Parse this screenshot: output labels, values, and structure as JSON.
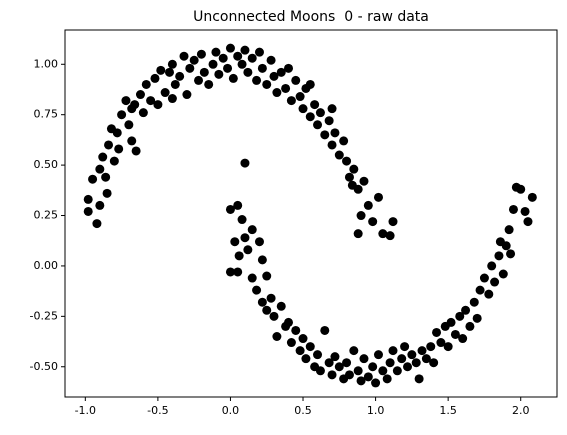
{
  "chart_data": {
    "type": "scatter",
    "title": "Unconnected Moons  0 - raw data",
    "xlim": [
      -1.14,
      2.25
    ],
    "ylim": [
      -0.65,
      1.17
    ],
    "xticks": [
      {
        "value": -1.0,
        "label": "-1.0"
      },
      -0.5,
      {
        "value": 0.0,
        "label": "0.0"
      },
      0.5,
      {
        "value": 1.0,
        "label": "1.0"
      },
      1.5,
      {
        "value": 2.0,
        "label": "2.0"
      }
    ],
    "yticks": [
      {
        "value": -0.5,
        "label": "-0.50"
      },
      -0.25,
      {
        "value": 0.0,
        "label": "0.00"
      },
      0.25,
      {
        "value": 0.5,
        "label": "0.50"
      },
      0.75,
      {
        "value": 1.0,
        "label": "1.00"
      }
    ],
    "series": [
      {
        "color": "#000000",
        "x": [
          -0.98,
          -0.98,
          -0.92,
          -0.95,
          -0.9,
          -0.88,
          -0.86,
          -0.9,
          -0.85,
          -0.84,
          -0.82,
          -0.8,
          -0.78,
          -0.75,
          -0.77,
          -0.72,
          -0.7,
          -0.68,
          -0.66,
          -0.65,
          -0.62,
          -0.6,
          -0.58,
          -0.55,
          -0.52,
          -0.5,
          -0.48,
          -0.45,
          -0.42,
          -0.4,
          -0.38,
          -0.35,
          -0.32,
          -0.3,
          -0.28,
          -0.25,
          -0.22,
          -0.2,
          -0.18,
          -0.15,
          -0.12,
          -0.1,
          -0.08,
          -0.05,
          -0.02,
          0.0,
          0.02,
          0.05,
          0.08,
          0.1,
          0.12,
          0.15,
          0.18,
          0.2,
          0.22,
          0.25,
          0.28,
          0.3,
          0.32,
          0.35,
          0.38,
          0.4,
          0.42,
          0.45,
          0.48,
          0.5,
          0.52,
          0.55,
          0.58,
          0.6,
          0.62,
          0.65,
          0.68,
          0.7,
          0.72,
          0.75,
          0.78,
          0.8,
          0.82,
          0.85,
          0.88,
          0.9,
          0.92,
          0.95,
          0.88,
          0.98,
          1.02,
          1.05,
          1.1,
          1.12,
          0.84,
          0.7,
          0.55,
          -0.68,
          -0.4,
          0.1,
          0.0,
          0.05,
          0.08,
          0.03,
          0.06,
          0.1,
          0.12,
          0.15,
          0.2,
          0.22,
          0.0,
          0.05,
          0.15,
          0.18,
          0.25,
          0.22,
          0.28,
          0.3,
          0.25,
          0.35,
          0.38,
          0.32,
          0.4,
          0.42,
          0.45,
          0.48,
          0.5,
          0.52,
          0.55,
          0.58,
          0.6,
          0.62,
          0.65,
          0.68,
          0.7,
          0.72,
          0.75,
          0.78,
          0.8,
          0.82,
          0.85,
          0.88,
          0.9,
          0.92,
          0.95,
          0.98,
          1.0,
          1.02,
          1.05,
          1.08,
          1.1,
          1.12,
          1.15,
          1.18,
          1.2,
          1.22,
          1.25,
          1.28,
          1.3,
          1.32,
          1.35,
          1.38,
          1.4,
          1.42,
          1.45,
          1.48,
          1.5,
          1.52,
          1.55,
          1.58,
          1.6,
          1.62,
          1.65,
          1.68,
          1.7,
          1.72,
          1.75,
          1.78,
          1.8,
          1.82,
          1.85,
          1.88,
          1.9,
          1.86,
          1.92,
          1.95,
          1.97,
          2.0,
          2.03,
          2.08,
          2.05,
          1.93
        ],
        "values": [
          0.33,
          0.27,
          0.21,
          0.43,
          0.48,
          0.54,
          0.44,
          0.3,
          0.36,
          0.6,
          0.68,
          0.52,
          0.66,
          0.75,
          0.58,
          0.82,
          0.7,
          0.62,
          0.8,
          0.57,
          0.85,
          0.76,
          0.9,
          0.82,
          0.93,
          0.8,
          0.97,
          0.86,
          0.96,
          1.0,
          0.9,
          0.94,
          1.04,
          0.85,
          0.98,
          1.02,
          0.92,
          1.05,
          0.96,
          0.9,
          1.0,
          1.06,
          0.95,
          1.03,
          0.98,
          1.08,
          0.93,
          1.04,
          1.0,
          1.07,
          0.96,
          1.03,
          0.92,
          1.06,
          0.98,
          0.9,
          1.02,
          0.94,
          0.86,
          0.96,
          0.88,
          0.98,
          0.82,
          0.92,
          0.84,
          0.78,
          0.88,
          0.74,
          0.8,
          0.7,
          0.76,
          0.65,
          0.72,
          0.6,
          0.66,
          0.55,
          0.62,
          0.52,
          0.44,
          0.48,
          0.38,
          0.25,
          0.42,
          0.3,
          0.16,
          0.22,
          0.34,
          0.16,
          0.15,
          0.22,
          0.4,
          0.78,
          0.9,
          0.78,
          0.83,
          0.51,
          0.28,
          0.3,
          0.23,
          0.12,
          0.05,
          0.14,
          0.08,
          0.18,
          0.12,
          0.03,
          -0.03,
          -0.03,
          -0.06,
          -0.12,
          -0.05,
          -0.18,
          -0.16,
          -0.25,
          -0.22,
          -0.2,
          -0.3,
          -0.35,
          -0.28,
          -0.38,
          -0.32,
          -0.42,
          -0.36,
          -0.46,
          -0.4,
          -0.5,
          -0.44,
          -0.52,
          -0.32,
          -0.48,
          -0.54,
          -0.45,
          -0.5,
          -0.56,
          -0.48,
          -0.54,
          -0.42,
          -0.52,
          -0.57,
          -0.46,
          -0.55,
          -0.5,
          -0.58,
          -0.44,
          -0.52,
          -0.56,
          -0.48,
          -0.42,
          -0.52,
          -0.46,
          -0.4,
          -0.5,
          -0.44,
          -0.48,
          -0.56,
          -0.42,
          -0.46,
          -0.4,
          -0.48,
          -0.33,
          -0.38,
          -0.3,
          -0.4,
          -0.28,
          -0.34,
          -0.25,
          -0.36,
          -0.22,
          -0.3,
          -0.18,
          -0.26,
          -0.12,
          -0.06,
          -0.14,
          0.0,
          -0.08,
          0.05,
          -0.04,
          0.1,
          0.12,
          0.18,
          0.28,
          0.39,
          0.38,
          0.27,
          0.34,
          0.22,
          0.06
        ]
      }
    ]
  }
}
